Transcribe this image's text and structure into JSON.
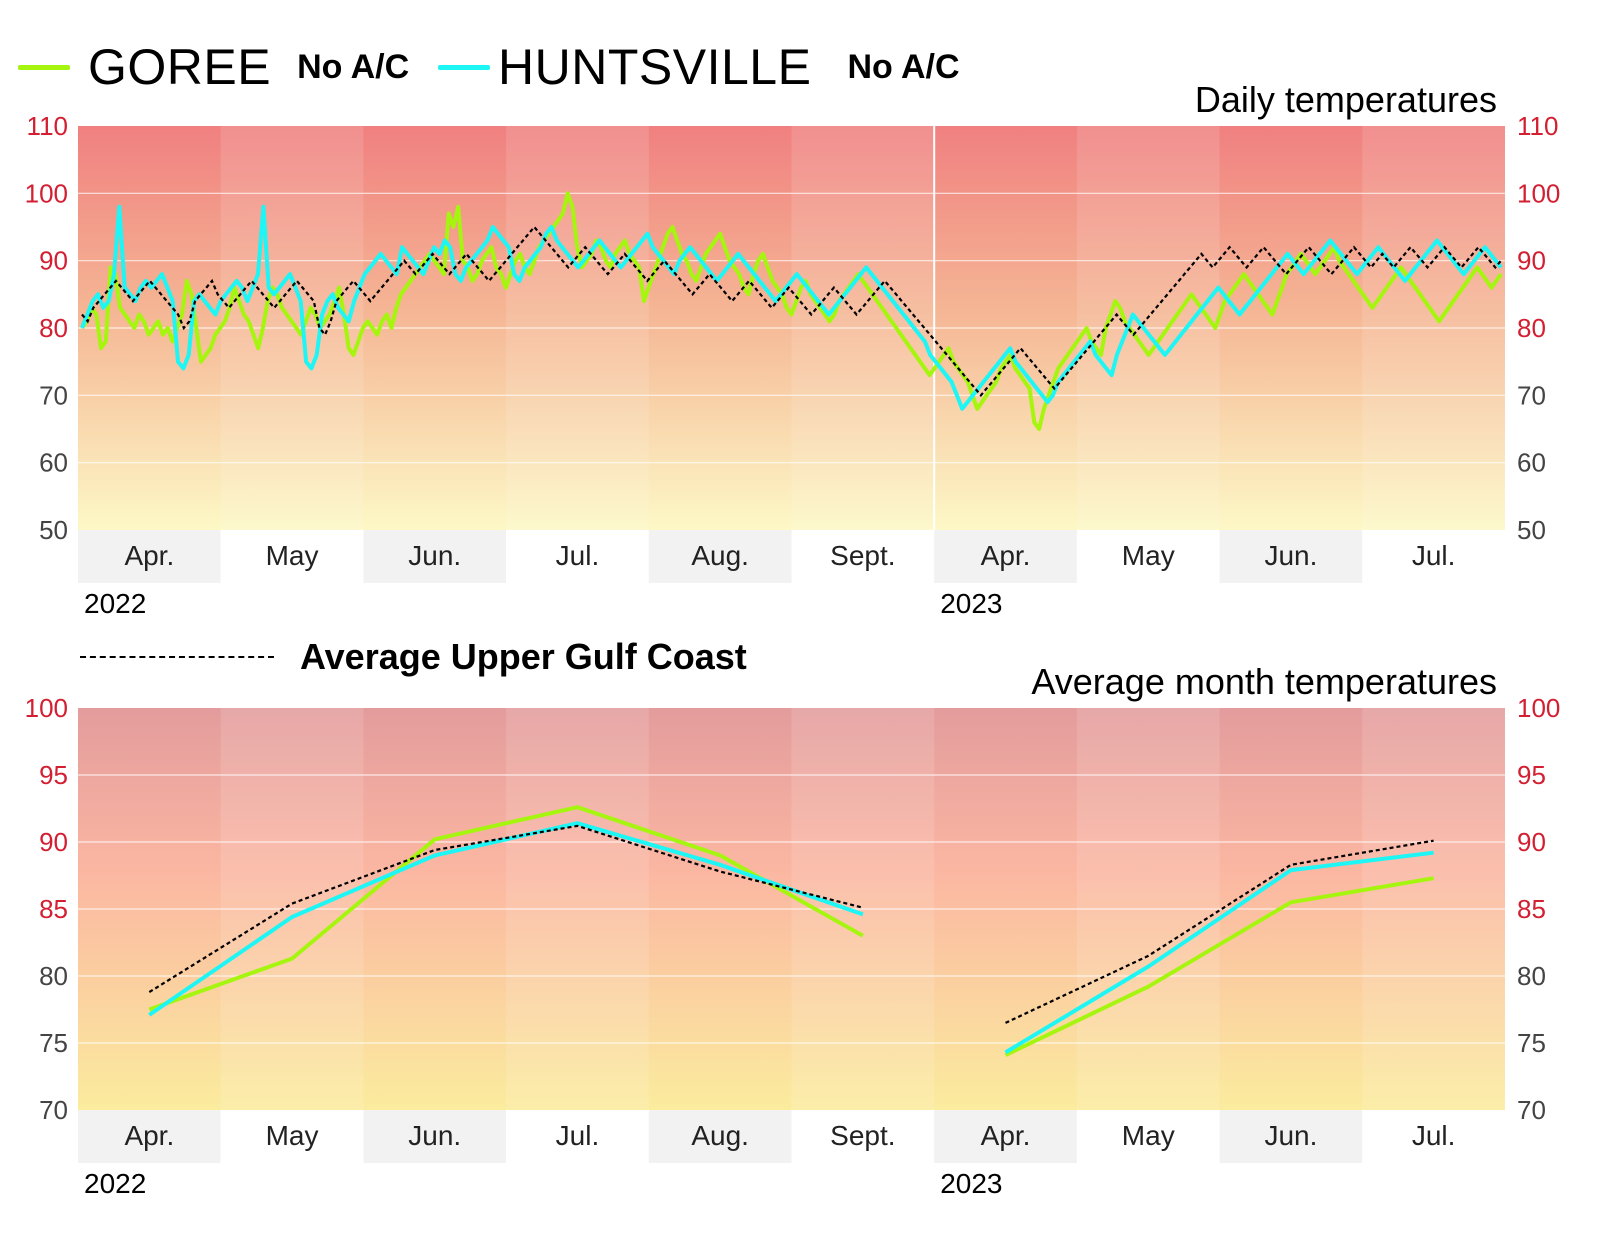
{
  "legend": {
    "series1": {
      "name": "GOREE",
      "note": "No A/C",
      "color": "#a6f50f"
    },
    "series2": {
      "name": "HUNTSVILLE",
      "note": "No A/C",
      "color": "#1ef5f5"
    },
    "average": {
      "name": "Average Upper Gulf Coast",
      "color": "#000000"
    }
  },
  "chart_data": [
    {
      "type": "line",
      "title": "Daily temperatures",
      "ylim": [
        50,
        110
      ],
      "yticks": [
        50,
        60,
        70,
        80,
        90,
        100,
        110
      ],
      "months": [
        "Apr.",
        "May",
        "Jun.",
        "Jul.",
        "Aug.",
        "Sept.",
        "Apr.",
        "May",
        "Jun.",
        "Jul."
      ],
      "years": [
        {
          "label": "2022",
          "month_index": 0
        },
        {
          "label": "2023",
          "month_index": 6
        }
      ],
      "series": [
        {
          "name": "GOREE",
          "values": [
            80,
            81,
            83,
            82,
            77,
            78,
            89,
            88,
            83,
            82,
            81,
            80,
            82,
            81,
            79,
            80,
            81,
            79,
            80,
            78,
            80,
            82,
            87,
            85,
            80,
            75,
            76,
            77,
            79,
            80,
            81,
            83,
            86,
            84,
            82,
            81,
            79,
            77,
            80,
            84,
            86,
            85,
            83,
            82,
            81,
            80,
            79,
            81,
            83,
            82,
            80,
            81,
            82,
            84,
            86,
            82,
            77,
            76,
            78,
            80,
            81,
            80,
            79,
            81,
            82,
            80,
            83,
            85,
            86,
            87,
            88,
            89,
            90,
            91,
            90,
            89,
            88,
            97,
            95,
            98,
            90,
            89,
            87,
            88,
            90,
            91,
            92,
            89,
            88,
            86,
            88,
            90,
            91,
            89,
            88,
            90,
            92,
            93,
            94,
            95,
            96,
            97,
            100,
            98,
            92,
            89,
            90,
            91,
            93,
            92,
            90,
            89,
            91,
            92,
            93,
            91,
            90,
            89,
            84,
            86,
            88,
            90,
            92,
            94,
            95,
            93,
            91,
            90,
            88,
            87,
            89,
            91,
            92,
            93,
            94,
            92,
            90,
            89,
            88,
            86,
            85,
            88,
            90,
            91,
            89,
            87,
            86,
            85,
            83,
            82,
            84,
            86,
            87,
            85,
            84,
            83,
            82,
            81,
            82,
            84,
            85,
            86,
            87,
            88,
            87,
            86,
            85,
            84,
            83,
            82,
            81,
            80,
            79,
            78,
            77,
            76,
            75,
            74,
            73,
            74,
            75,
            76,
            77,
            75,
            74,
            73,
            72,
            70,
            68,
            69,
            70,
            71,
            72,
            74,
            75,
            76,
            74,
            73,
            72,
            71,
            66,
            65,
            68,
            70,
            72,
            74,
            75,
            76,
            77,
            78,
            79,
            80,
            78,
            77,
            76,
            80,
            82,
            84,
            83,
            81,
            80,
            79,
            78,
            77,
            76,
            77,
            78,
            79,
            80,
            81,
            82,
            83,
            84,
            85,
            84,
            83,
            82,
            81,
            80,
            82,
            84,
            85,
            86,
            87,
            88,
            87,
            86,
            85,
            84,
            83,
            82,
            84,
            86,
            88,
            89,
            90,
            91,
            90,
            89,
            88,
            89,
            90,
            91,
            92,
            90,
            89,
            88,
            87,
            86,
            85,
            84,
            83,
            84,
            85,
            86,
            87,
            88,
            89,
            88,
            87,
            86,
            85,
            84,
            83,
            82,
            81,
            82,
            83,
            84,
            85,
            86,
            87,
            88,
            89,
            88,
            87,
            86,
            87,
            88
          ]
        },
        {
          "name": "HUNTSVILLE",
          "values": [
            80,
            82,
            84,
            85,
            83,
            84,
            88,
            98,
            86,
            85,
            84,
            86,
            87,
            86,
            87,
            88,
            86,
            84,
            75,
            74,
            76,
            84,
            85,
            84,
            83,
            82,
            84,
            85,
            86,
            87,
            86,
            84,
            86,
            88,
            98,
            86,
            85,
            86,
            87,
            88,
            86,
            84,
            75,
            74,
            76,
            82,
            84,
            85,
            83,
            82,
            81,
            84,
            86,
            88,
            89,
            90,
            91,
            90,
            89,
            88,
            92,
            91,
            90,
            89,
            88,
            90,
            92,
            91,
            93,
            92,
            88,
            87,
            89,
            90,
            91,
            92,
            93,
            95,
            94,
            93,
            92,
            88,
            87,
            89,
            90,
            91,
            92,
            94,
            95,
            93,
            92,
            91,
            90,
            89,
            90,
            91,
            92,
            93,
            92,
            91,
            90,
            89,
            90,
            91,
            92,
            93,
            94,
            92,
            91,
            90,
            89,
            88,
            90,
            91,
            92,
            91,
            90,
            89,
            88,
            87,
            88,
            89,
            90,
            91,
            90,
            89,
            88,
            87,
            86,
            85,
            84,
            85,
            86,
            87,
            88,
            87,
            86,
            85,
            84,
            83,
            82,
            83,
            84,
            85,
            86,
            87,
            88,
            89,
            88,
            87,
            86,
            85,
            84,
            83,
            82,
            81,
            80,
            79,
            78,
            76,
            75,
            74,
            73,
            72,
            70,
            68,
            69,
            70,
            71,
            72,
            73,
            74,
            75,
            76,
            77,
            75,
            74,
            73,
            72,
            71,
            70,
            69,
            70,
            72,
            73,
            74,
            75,
            76,
            77,
            78,
            76,
            75,
            74,
            73,
            76,
            78,
            80,
            82,
            81,
            80,
            79,
            78,
            77,
            76,
            77,
            78,
            79,
            80,
            81,
            82,
            83,
            84,
            85,
            86,
            85,
            84,
            83,
            82,
            83,
            84,
            85,
            86,
            87,
            88,
            89,
            90,
            91,
            90,
            89,
            88,
            89,
            90,
            91,
            92,
            93,
            92,
            91,
            90,
            89,
            88,
            89,
            90,
            91,
            92,
            91,
            90,
            89,
            88,
            87,
            88,
            89,
            90,
            91,
            92,
            93,
            92,
            91,
            90,
            89,
            88,
            89,
            90,
            91,
            92,
            91,
            90,
            89
          ]
        },
        {
          "name": "Average Upper Gulf Coast",
          "values": [
            82,
            81,
            83,
            84,
            85,
            86,
            87,
            86,
            85,
            84,
            85,
            86,
            87,
            86,
            85,
            84,
            83,
            82,
            80,
            81,
            84,
            85,
            86,
            87,
            85,
            84,
            83,
            84,
            85,
            86,
            87,
            86,
            85,
            84,
            83,
            84,
            85,
            86,
            87,
            86,
            85,
            84,
            80,
            79,
            81,
            84,
            85,
            86,
            87,
            86,
            85,
            84,
            85,
            86,
            87,
            88,
            89,
            90,
            89,
            88,
            89,
            90,
            91,
            90,
            89,
            88,
            89,
            90,
            91,
            90,
            89,
            88,
            87,
            88,
            89,
            90,
            91,
            92,
            93,
            94,
            95,
            94,
            93,
            92,
            91,
            90,
            89,
            90,
            91,
            92,
            91,
            90,
            89,
            88,
            89,
            90,
            91,
            90,
            89,
            88,
            87,
            88,
            89,
            90,
            89,
            88,
            87,
            86,
            85,
            86,
            87,
            88,
            87,
            86,
            85,
            84,
            85,
            86,
            87,
            86,
            85,
            84,
            83,
            84,
            85,
            86,
            85,
            84,
            83,
            82,
            83,
            84,
            85,
            86,
            85,
            84,
            83,
            82,
            83,
            84,
            85,
            86,
            87,
            86,
            85,
            84,
            83,
            82,
            81,
            80,
            79,
            78,
            77,
            76,
            75,
            74,
            73,
            72,
            71,
            70,
            71,
            72,
            73,
            74,
            75,
            76,
            77,
            76,
            75,
            74,
            73,
            72,
            71,
            72,
            73,
            74,
            75,
            76,
            77,
            78,
            79,
            80,
            81,
            82,
            81,
            80,
            79,
            80,
            81,
            82,
            83,
            84,
            85,
            86,
            87,
            88,
            89,
            90,
            91,
            90,
            89,
            90,
            91,
            92,
            91,
            90,
            89,
            90,
            91,
            92,
            91,
            90,
            89,
            88,
            89,
            90,
            91,
            92,
            91,
            90,
            89,
            88,
            89,
            90,
            91,
            92,
            91,
            90,
            89,
            90,
            91,
            90,
            89,
            90,
            91,
            92,
            91,
            90,
            89,
            90,
            91,
            92,
            91,
            90,
            89,
            90,
            91,
            92,
            91,
            90,
            89,
            90
          ]
        }
      ]
    },
    {
      "type": "line",
      "title": "Average month temperatures",
      "ylim": [
        70,
        100
      ],
      "yticks": [
        70,
        75,
        80,
        85,
        90,
        95,
        100
      ],
      "categories": [
        "Apr.",
        "May",
        "Jun.",
        "Jul.",
        "Aug.",
        "Sept.",
        "Apr.",
        "May",
        "Jun.",
        "Jul."
      ],
      "years": [
        {
          "label": "2022",
          "month_index": 0
        },
        {
          "label": "2023",
          "month_index": 6
        }
      ],
      "segments": [
        [
          0,
          5
        ],
        [
          6,
          9
        ]
      ],
      "series": [
        {
          "name": "GOREE",
          "values": [
            77.5,
            81.3,
            90.2,
            92.6,
            89.0,
            83.0,
            74.1,
            79.2,
            85.5,
            87.3
          ]
        },
        {
          "name": "HUNTSVILLE",
          "values": [
            77.1,
            84.4,
            89.0,
            91.4,
            88.3,
            84.6,
            74.3,
            80.7,
            87.9,
            89.2
          ]
        },
        {
          "name": "Average Upper Gulf Coast",
          "values": [
            78.8,
            85.4,
            89.4,
            91.2,
            87.8,
            85.1,
            76.5,
            81.5,
            88.3,
            90.1
          ]
        }
      ]
    }
  ]
}
